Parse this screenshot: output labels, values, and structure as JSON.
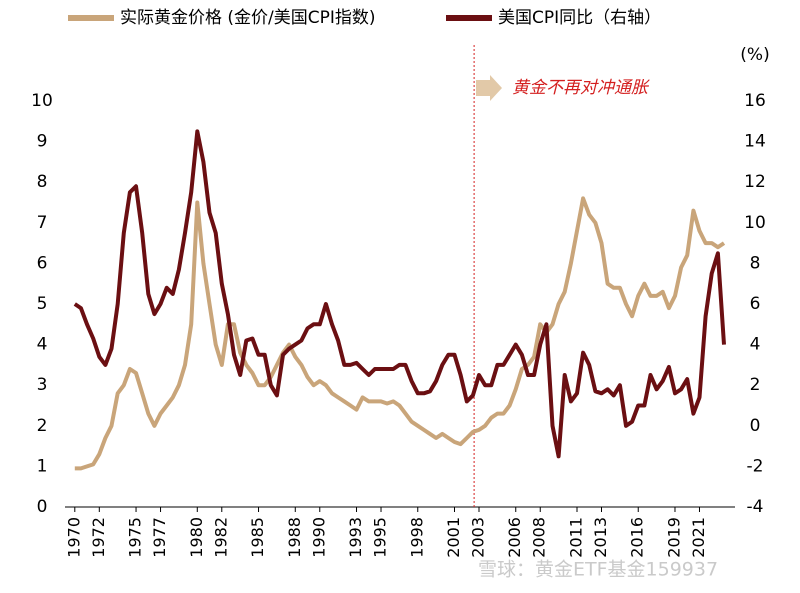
{
  "chart_data": {
    "type": "line",
    "legend": "top",
    "annotation": {
      "text": "黄金不再对冲通胀",
      "x": 2002.6,
      "color": "#d42020"
    },
    "y2_unit": "(%)",
    "watermark": "雪球：黄金ETF基金159937",
    "x": [
      1970,
      1970.5,
      1971,
      1971.5,
      1972,
      1972.5,
      1973,
      1973.5,
      1974,
      1974.5,
      1975,
      1975.5,
      1976,
      1976.5,
      1977,
      1977.5,
      1978,
      1978.5,
      1979,
      1979.5,
      1980,
      1980.5,
      1981,
      1981.5,
      1982,
      1982.5,
      1983,
      1983.5,
      1984,
      1984.5,
      1985,
      1985.5,
      1986,
      1986.5,
      1987,
      1987.5,
      1988,
      1988.5,
      1989,
      1989.5,
      1990,
      1990.5,
      1991,
      1991.5,
      1992,
      1992.5,
      1993,
      1993.5,
      1994,
      1994.5,
      1995,
      1995.5,
      1996,
      1996.5,
      1997,
      1997.5,
      1998,
      1998.5,
      1999,
      1999.5,
      2000,
      2000.5,
      2001,
      2001.5,
      2002,
      2002.5,
      2003,
      2003.5,
      2004,
      2004.5,
      2005,
      2005.5,
      2006,
      2006.5,
      2007,
      2007.5,
      2008,
      2008.5,
      2009,
      2009.5,
      2010,
      2010.5,
      2011,
      2011.5,
      2012,
      2012.5,
      2013,
      2013.5,
      2014,
      2014.5,
      2015,
      2015.5,
      2016,
      2016.5,
      2017,
      2017.5,
      2018,
      2018.5,
      2019,
      2019.5,
      2020,
      2020.5,
      2021,
      2021.5,
      2022,
      2022.5,
      2023
    ],
    "series": [
      {
        "name": "实际黄金价格 (金价/美国CPI指数)",
        "color": "#c9a57a",
        "values": [
          0.95,
          0.95,
          1.0,
          1.05,
          1.3,
          1.7,
          2.0,
          2.8,
          3.0,
          3.4,
          3.3,
          2.8,
          2.3,
          2.0,
          2.3,
          2.5,
          2.7,
          3.0,
          3.5,
          4.5,
          7.5,
          6.0,
          5.0,
          4.0,
          3.5,
          4.5,
          4.5,
          3.8,
          3.5,
          3.3,
          3.0,
          3.0,
          3.2,
          3.5,
          3.8,
          4.0,
          3.7,
          3.5,
          3.2,
          3.0,
          3.1,
          3.0,
          2.8,
          2.7,
          2.6,
          2.5,
          2.4,
          2.7,
          2.6,
          2.6,
          2.6,
          2.55,
          2.6,
          2.5,
          2.3,
          2.1,
          2.0,
          1.9,
          1.8,
          1.7,
          1.8,
          1.7,
          1.6,
          1.55,
          1.7,
          1.85,
          1.9,
          2.0,
          2.2,
          2.3,
          2.3,
          2.5,
          2.9,
          3.4,
          3.5,
          3.7,
          4.5,
          4.3,
          4.5,
          5.0,
          5.3,
          6.0,
          6.8,
          7.6,
          7.2,
          7.0,
          6.5,
          5.5,
          5.4,
          5.4,
          5.0,
          4.7,
          5.2,
          5.5,
          5.2,
          5.2,
          5.3,
          4.9,
          5.2,
          5.9,
          6.2,
          7.3,
          6.8,
          6.5,
          6.5,
          6.4,
          6.5
        ]
      },
      {
        "name": "美国CPI同比（右轴）",
        "color": "#6b0f12",
        "axis": "y2",
        "values": [
          6.0,
          5.8,
          5.0,
          4.3,
          3.4,
          3.0,
          3.8,
          6.0,
          9.5,
          11.5,
          11.8,
          9.5,
          6.5,
          5.5,
          6.0,
          6.8,
          6.5,
          7.7,
          9.5,
          11.5,
          14.5,
          13.0,
          10.5,
          9.5,
          7.0,
          5.5,
          3.5,
          2.5,
          4.2,
          4.3,
          3.5,
          3.5,
          2.0,
          1.5,
          3.5,
          3.8,
          4.0,
          4.2,
          4.8,
          5.0,
          5.0,
          6.0,
          5.0,
          4.2,
          3.0,
          3.0,
          3.1,
          2.8,
          2.5,
          2.8,
          2.8,
          2.8,
          2.8,
          3.0,
          3.0,
          2.2,
          1.6,
          1.6,
          1.7,
          2.2,
          3.0,
          3.5,
          3.5,
          2.5,
          1.2,
          1.5,
          2.5,
          2.0,
          2.0,
          3.0,
          3.0,
          3.5,
          4.0,
          3.5,
          2.5,
          2.5,
          4.0,
          5.0,
          0.0,
          -1.5,
          2.5,
          1.2,
          1.6,
          3.6,
          3.0,
          1.7,
          1.6,
          1.8,
          1.5,
          2.0,
          0.0,
          0.2,
          1.0,
          1.0,
          2.5,
          1.8,
          2.2,
          2.9,
          1.6,
          1.8,
          2.3,
          0.6,
          1.4,
          5.4,
          7.5,
          8.5,
          4.0
        ]
      }
    ],
    "xlim": [
      1969.2,
      2023.9
    ],
    "xticks": [
      1970,
      1972,
      1975,
      1977,
      1980,
      1982,
      1985,
      1988,
      1990,
      1993,
      1995,
      1998,
      2001,
      2003,
      2006,
      2008,
      2011,
      2013,
      2016,
      2019,
      2021
    ],
    "ylim": [
      0,
      10
    ],
    "yticks": [
      0,
      1,
      2,
      3,
      4,
      5,
      6,
      7,
      8,
      9,
      10
    ],
    "y2lim": [
      -4,
      16
    ],
    "y2ticks": [
      -4,
      -2,
      0,
      2,
      4,
      6,
      8,
      10,
      12,
      14,
      16
    ]
  }
}
